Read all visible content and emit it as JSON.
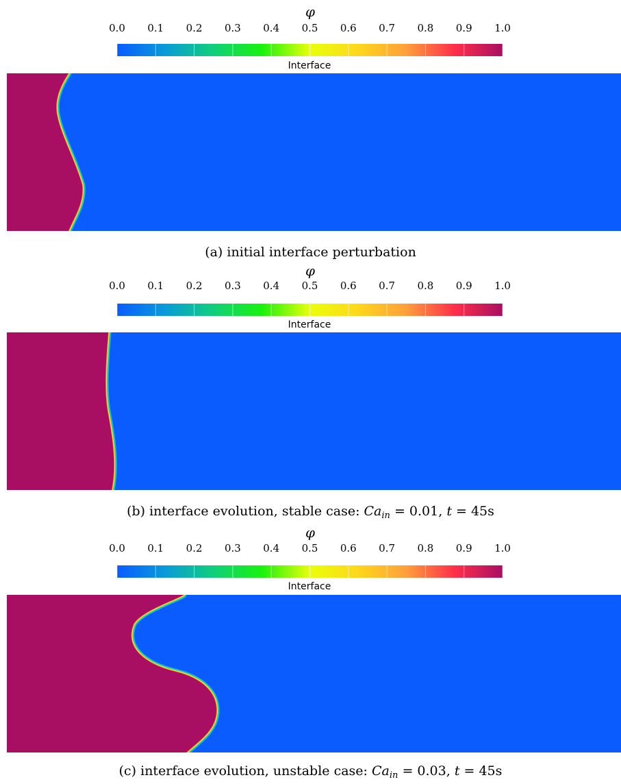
{
  "colorbar": {
    "symbol": "φ",
    "ticks": [
      "0.0",
      "0.1",
      "0.2",
      "0.3",
      "0.4",
      "0.5",
      "0.6",
      "0.7",
      "0.8",
      "0.9",
      "1.0"
    ],
    "label": "Interface",
    "range": [
      0.0,
      1.0
    ],
    "colors": [
      "#0a5cff",
      "#0a9bd8",
      "#10cf7a",
      "#19f20d",
      "#e9ff0a",
      "#ffd71c",
      "#ff9f3c",
      "#ff2f4a",
      "#a80f63"
    ]
  },
  "field_colors": {
    "phase_one": "#a80f63",
    "phase_two": "#0a5cff"
  },
  "panels": [
    {
      "caption": {
        "text": "(a) initial interface perturbation",
        "math": []
      }
    },
    {
      "caption": {
        "text": "(b) interface evolution, stable case: ",
        "math": [
          {
            "base": "Ca",
            "sub": "in",
            "rest": " = 0.01"
          },
          {
            "base": "t",
            "sub": "",
            "rest": " = 45s"
          }
        ]
      }
    },
    {
      "caption": {
        "text": "(c) interface evolution, unstable case: ",
        "math": [
          {
            "base": "Ca",
            "sub": "in",
            "rest": " = 0.03"
          },
          {
            "base": "t",
            "sub": "",
            "rest": " = 45s"
          }
        ]
      }
    }
  ]
}
